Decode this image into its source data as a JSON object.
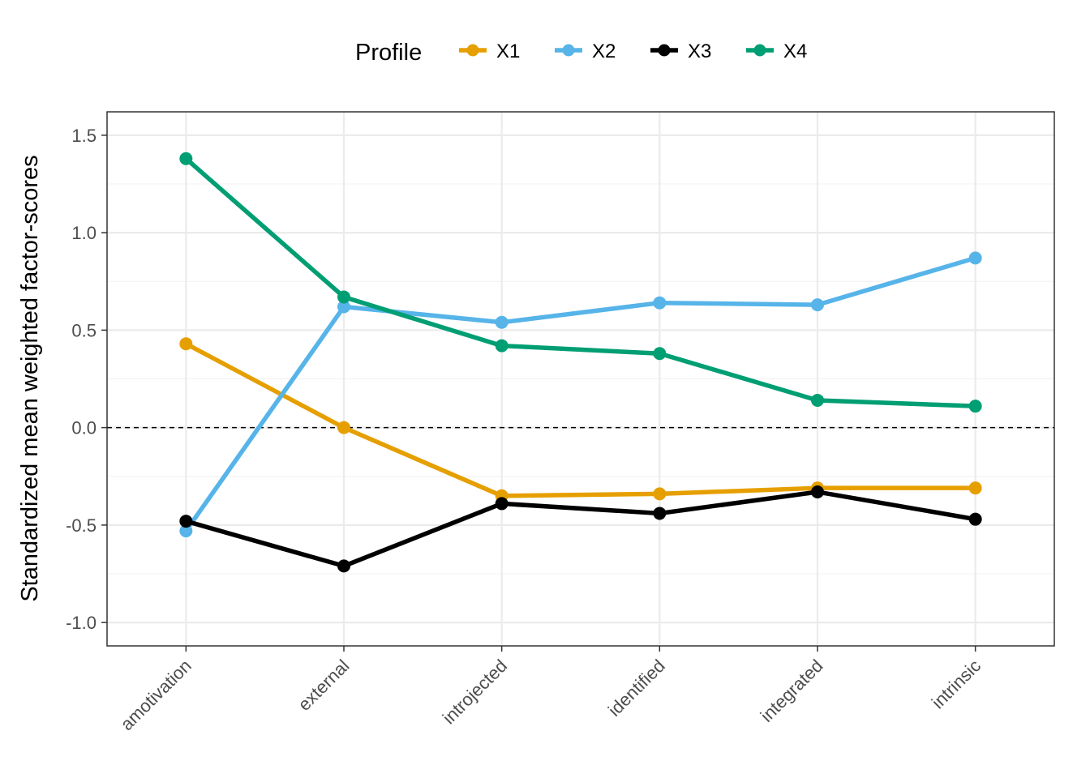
{
  "chart_data": {
    "type": "line",
    "ylabel": "Standardized mean weighted factor-scores",
    "xlabel": "",
    "legend_title": "Profile",
    "legend_position": "top",
    "grid": true,
    "reference_line": {
      "y": 0,
      "style": "dashed"
    },
    "categories": [
      "amotivation",
      "external",
      "introjected",
      "identified",
      "integrated",
      "intrinsic"
    ],
    "ylim": [
      -1.12,
      1.62
    ],
    "yticks": [
      -1.0,
      -0.5,
      0.0,
      0.5,
      1.0,
      1.5
    ],
    "ytick_labels": [
      "-1.0",
      "-0.5",
      "0.0",
      "0.5",
      "1.0",
      "1.5"
    ],
    "series": [
      {
        "name": "X1",
        "color": "#E69F00",
        "values": [
          0.43,
          0.0,
          -0.35,
          -0.34,
          -0.31,
          -0.31
        ]
      },
      {
        "name": "X2",
        "color": "#56B4E9",
        "values": [
          -0.53,
          0.62,
          0.54,
          0.64,
          0.63,
          0.87
        ]
      },
      {
        "name": "X3",
        "color": "#000000",
        "values": [
          -0.48,
          -0.71,
          -0.39,
          -0.44,
          -0.33,
          -0.47
        ]
      },
      {
        "name": "X4",
        "color": "#009E73",
        "values": [
          1.38,
          0.67,
          0.42,
          0.38,
          0.14,
          0.11
        ]
      }
    ]
  }
}
